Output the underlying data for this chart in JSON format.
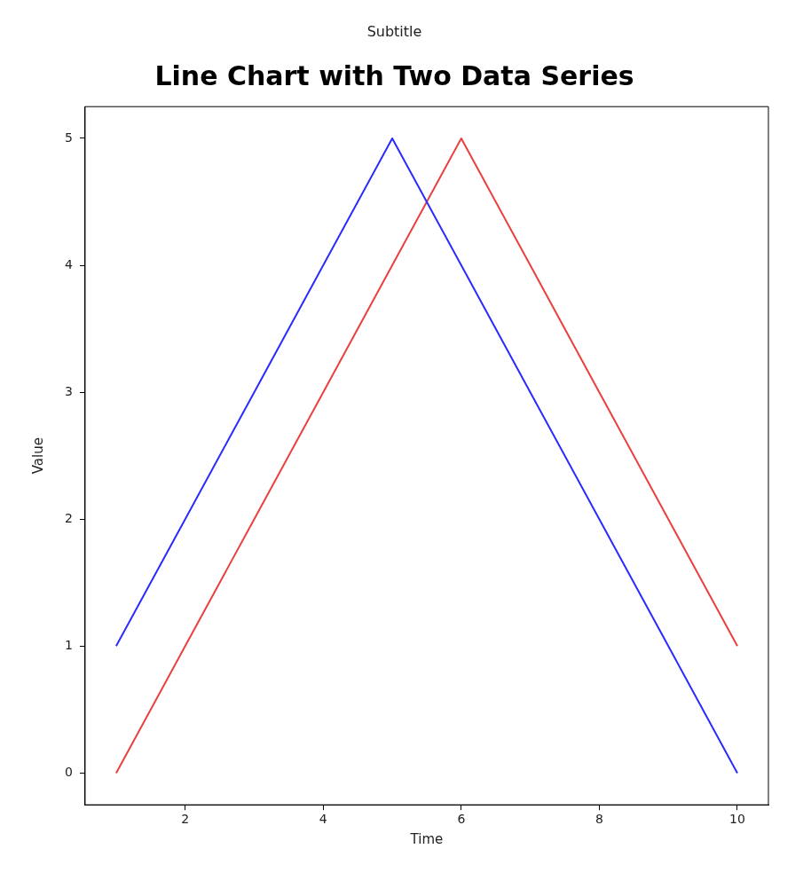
{
  "chart_data": {
    "type": "line",
    "title": "Line Chart with Two Data Series",
    "subtitle": "Subtitle",
    "xlabel": "Time",
    "ylabel": "Value",
    "x": [
      1,
      2,
      3,
      4,
      5,
      6,
      7,
      8,
      9,
      10
    ],
    "series": [
      {
        "color": "#2b2bff",
        "values": [
          1,
          2,
          3,
          4,
          5,
          4,
          3,
          2,
          1,
          0
        ]
      },
      {
        "color": "#e8413d",
        "values": [
          0,
          1,
          2,
          3,
          4,
          5,
          4,
          3,
          2,
          1
        ]
      }
    ],
    "xlim": [
      0.55,
      10.45
    ],
    "xticks": [
      2,
      4,
      6,
      8,
      10
    ],
    "ylim": [
      -0.25,
      5.25
    ],
    "yticks": [
      0,
      1,
      2,
      3,
      4,
      5
    ],
    "grid": false,
    "legend": false,
    "marker": "none",
    "line_style": "solid"
  }
}
